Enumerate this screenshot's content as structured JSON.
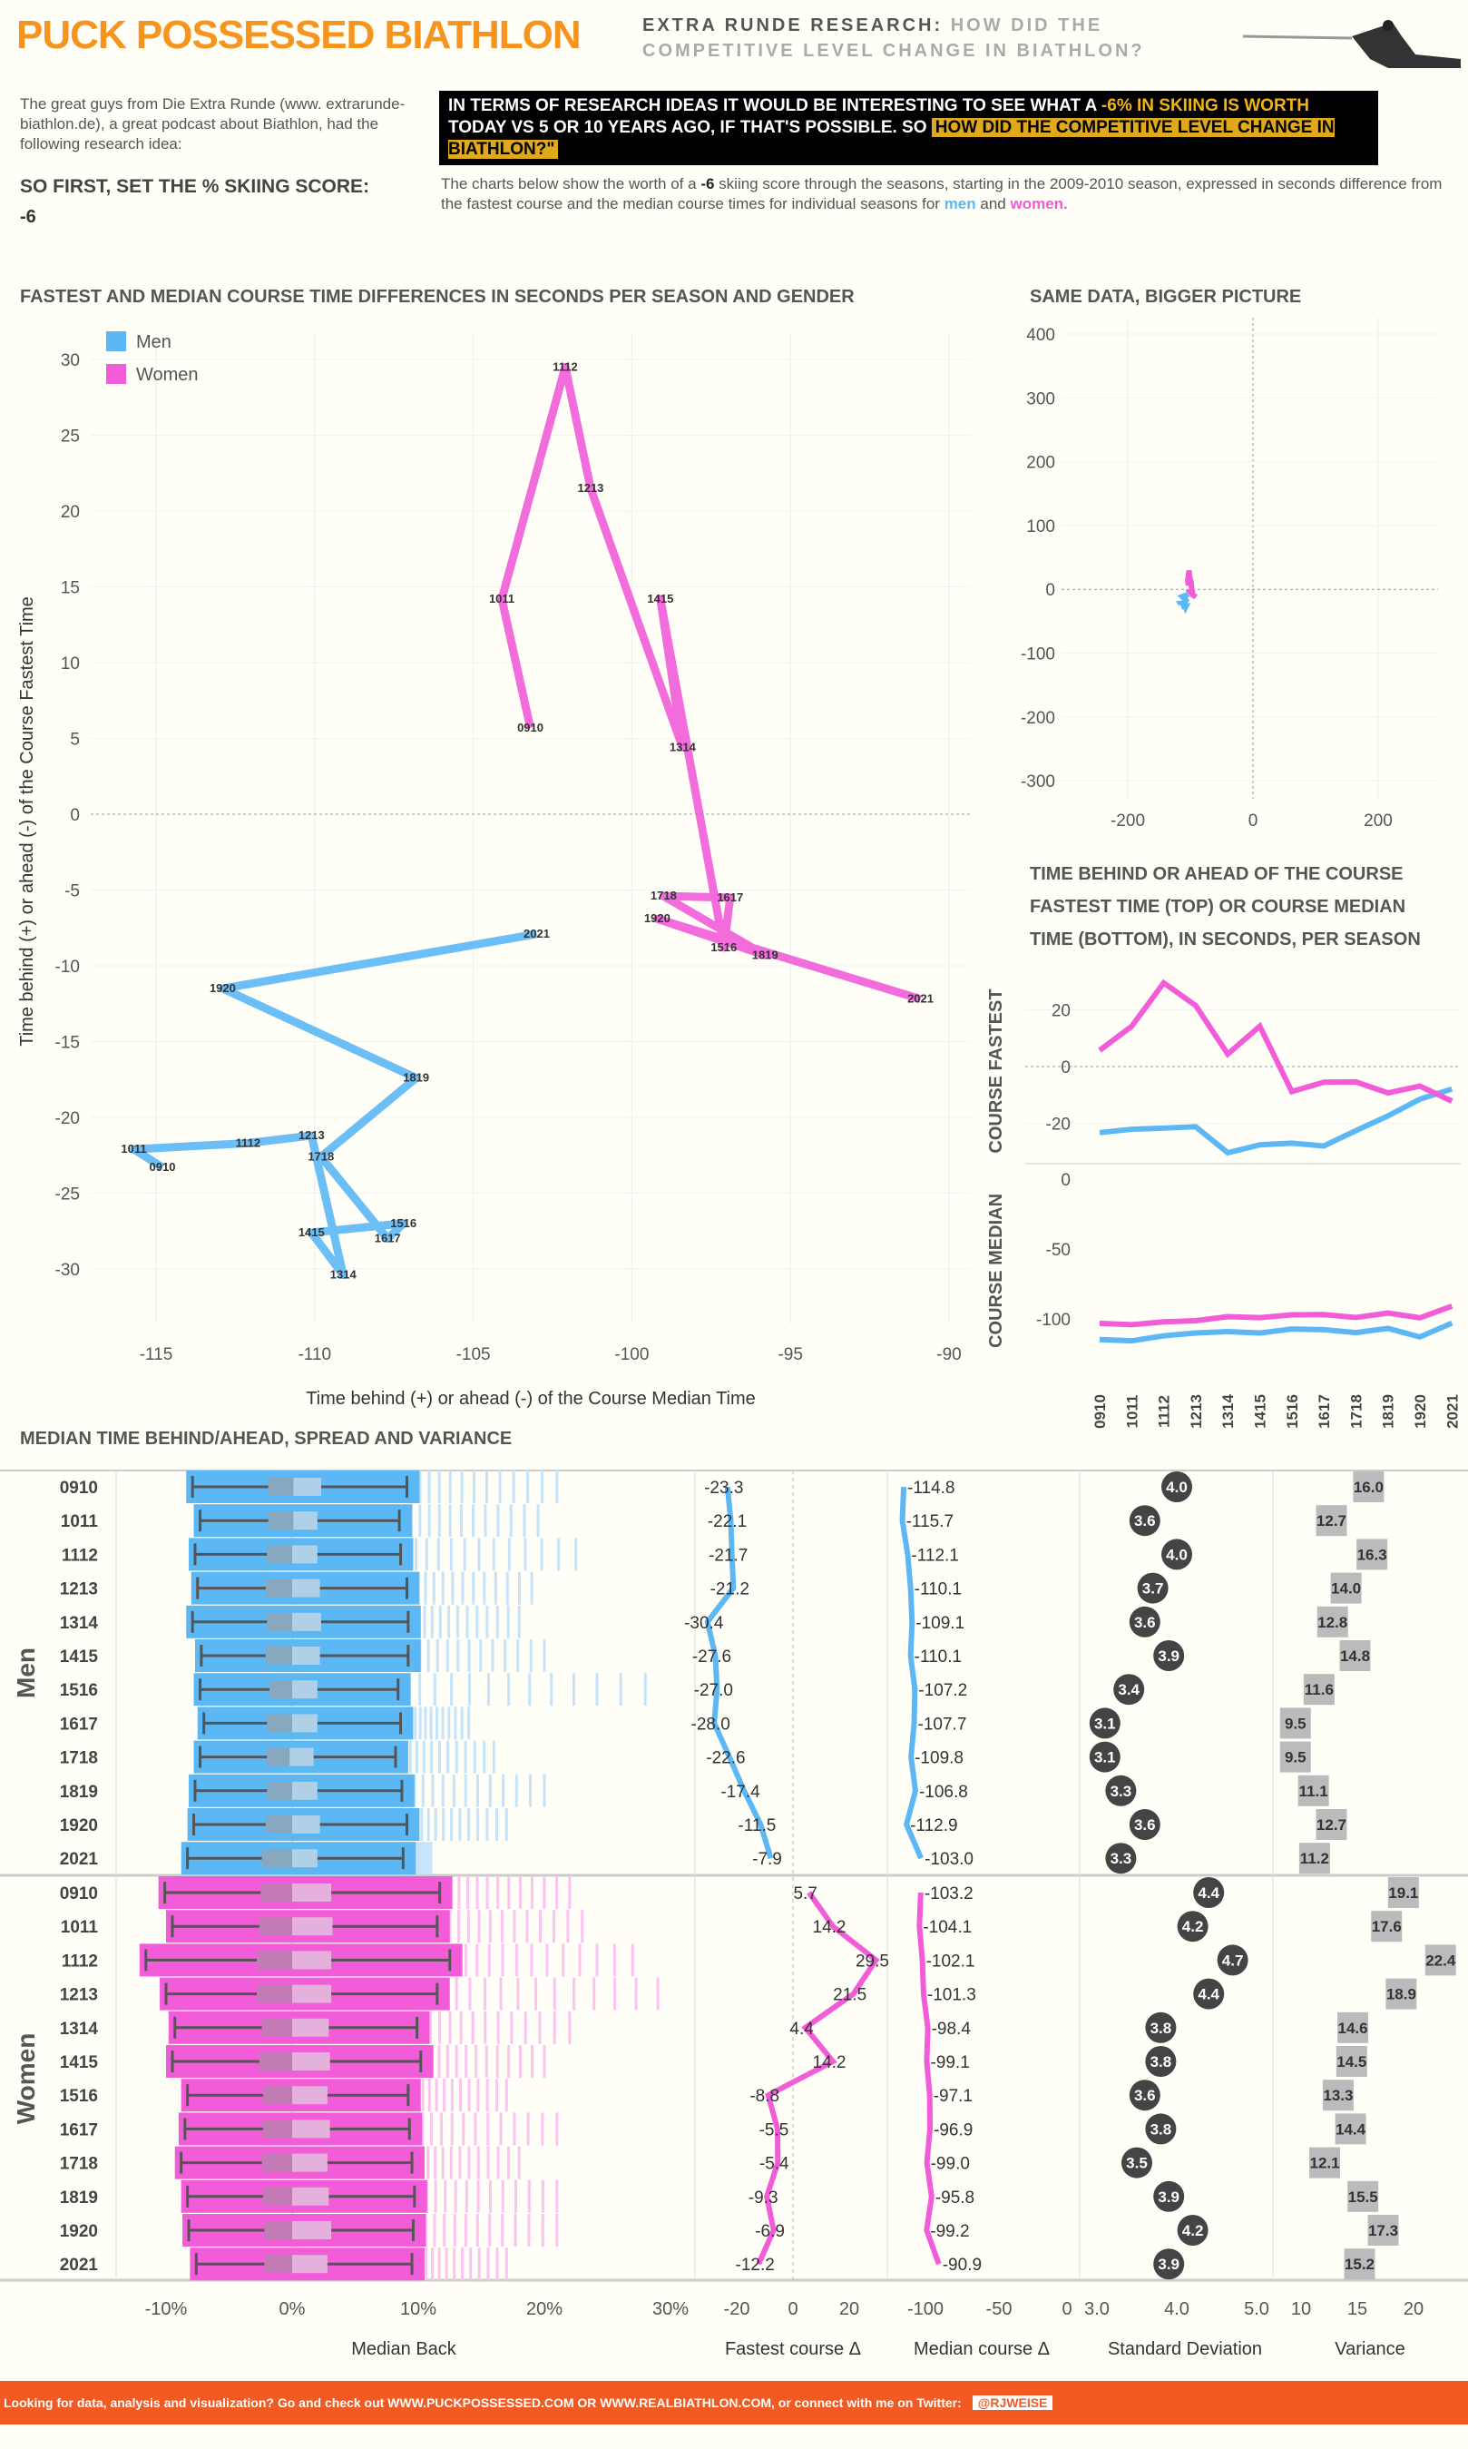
{
  "header": {
    "title": "PUCK POSSESSED BIATHLON",
    "subtitle_bold": "EXTRA RUNDE RESEARCH:",
    "subtitle_light1": "HOW DID THE",
    "subtitle_light2": "COMPETITIVE LEVEL CHANGE IN BIATHLON?"
  },
  "intro": {
    "text": "The great guys from Die Extra Runde (www. extrarunde-biathlon.de), a great podcast about Biathlon, had the following research idea:",
    "quote_a": "IN TERMS OF RESEARCH IDEAS IT WOULD BE INTERESTING TO SEE WHAT A ",
    "quote_b": "-6% IN SKIING IS WORTH",
    "quote_c": " TODAY VS 5 OR 10 YEARS AGO, IF THAT'S POSSIBLE. SO ",
    "quote_d": "HOW DID THE COMPETITIVE LEVEL CHANGE IN BIATHLON?\"",
    "set_label": "SO FIRST, SET THE % SKIING SCORE:",
    "set_value": "-6",
    "desc_a": "The  charts below show the worth of a ",
    "desc_b": "-6",
    "desc_c": " skiing score through the seasons, starting in the 2009-2010 season, expressed in seconds difference from the fastest course and the median course times for individual seasons for ",
    "desc_men": "men",
    "desc_and": " and ",
    "desc_women": "women."
  },
  "colors": {
    "men": "#5BB8F5",
    "women": "#F25CD8",
    "accent": "#F7941D",
    "footer": "#F15A22"
  },
  "footer": {
    "text": "Looking for data, analysis and visualization? Go and check out WWW.PUCKPOSSESSED.COM OR WWW.REALBIATHLON.COM, or connect with me on Twitter:",
    "twitter": "@RJWEISE"
  },
  "chart_data": [
    {
      "type": "line",
      "title": "FASTEST AND MEDIAN COURSE TIME DIFFERENCES IN SECONDS PER SEASON AND GENDER",
      "xlabel": "Time behind (+) or ahead (-) of the Course Median Time",
      "ylabel": "Time behind (+) or ahead (-) of the Course Fastest Time",
      "xlim": [
        -117,
        -89
      ],
      "ylim": [
        -33,
        32
      ],
      "xticks": [
        -115,
        -110,
        -105,
        -100,
        -95,
        -90
      ],
      "yticks": [
        30,
        25,
        20,
        15,
        10,
        5,
        0,
        -5,
        -10,
        -15,
        -20,
        -25,
        -30
      ],
      "legend": [
        "Men",
        "Women"
      ],
      "legend_position": "top-left"
    },
    {
      "type": "scatter",
      "title": "SAME DATA,  BIGGER PICTURE",
      "xticks": [
        -200,
        0,
        200
      ],
      "yticks": [
        400,
        300,
        200,
        100,
        0,
        -100,
        -200,
        -300
      ]
    },
    {
      "type": "line",
      "title": "TIME BEHIND OR AHEAD OF THE COURSE FASTEST TIME (TOP) OR COURSE MEDIAN TIME (BOTTOM), IN SECONDS, PER SEASON",
      "panels": [
        "COURSE FASTEST",
        "COURSE MEDIAN"
      ],
      "fast_ticks": [
        20,
        0,
        -20
      ],
      "median_ticks": [
        0,
        -50,
        -100
      ]
    },
    {
      "type": "table",
      "title": "MEDIAN TIME BEHIND/AHEAD, SPREAD AND VARIANCE",
      "groups": [
        "Men",
        "Women"
      ],
      "columns": [
        "Median Back",
        "Fastest course Δ",
        "Median course Δ",
        "Standard Deviation",
        "Variance"
      ],
      "ticks": {
        "median_back": [
          "-10%",
          "0%",
          "10%",
          "20%",
          "30%"
        ],
        "fastest": [
          "-20",
          "0",
          "20"
        ],
        "median": [
          "-100",
          "-50",
          "0"
        ],
        "sd": [
          "3.0",
          "4.0",
          "5.0"
        ],
        "variance": [
          "10",
          "15",
          "20"
        ]
      }
    },
    {
      "seasons": [
        "0910",
        "1011",
        "1112",
        "1213",
        "1314",
        "1415",
        "1516",
        "1617",
        "1718",
        "1819",
        "1920",
        "2021"
      ],
      "men": {
        "fastest": [
          -23.3,
          -22.1,
          -21.7,
          -21.2,
          -30.4,
          -27.6,
          -27.0,
          -28.0,
          -22.6,
          -17.4,
          -11.5,
          -7.9
        ],
        "median": [
          -114.8,
          -115.7,
          -112.1,
          -110.1,
          -109.1,
          -110.1,
          -107.2,
          -107.7,
          -109.8,
          -106.8,
          -112.9,
          -103.0
        ],
        "sd": [
          4.0,
          3.6,
          4.0,
          3.7,
          3.6,
          3.9,
          3.4,
          3.1,
          3.1,
          3.3,
          3.6,
          3.3
        ],
        "variance": [
          16.0,
          12.7,
          16.3,
          14.0,
          12.8,
          14.8,
          11.6,
          9.5,
          9.5,
          11.1,
          12.7,
          11.2
        ],
        "box_pct": [
          [
            -7.9,
            -1.9,
            0.1,
            2.3,
            9.1,
            21
          ],
          [
            -7.3,
            -1.9,
            0.1,
            2.0,
            8.5,
            19.5
          ],
          [
            -7.7,
            -2.0,
            0.0,
            2.0,
            8.6,
            22.5
          ],
          [
            -7.5,
            -2.1,
            0.0,
            2.2,
            9.1,
            19
          ],
          [
            -7.9,
            -2.0,
            0.0,
            2.3,
            9.2,
            18
          ],
          [
            -7.2,
            -2.1,
            0.0,
            2.2,
            9.2,
            20
          ],
          [
            -7.3,
            -1.8,
            0.0,
            2.0,
            8.4,
            28
          ],
          [
            -7.0,
            -2.0,
            0.0,
            2.0,
            8.6,
            14
          ],
          [
            -7.3,
            -2.0,
            -0.2,
            1.7,
            8.2,
            16
          ],
          [
            -7.7,
            -2.0,
            0.0,
            2.0,
            8.7,
            20
          ],
          [
            -7.8,
            -2.1,
            0.0,
            2.2,
            9.1,
            17
          ],
          [
            -8.3,
            -2.4,
            0.0,
            2.0,
            8.8,
            11
          ]
        ]
      },
      "women": {
        "fastest": [
          5.7,
          14.2,
          29.5,
          21.5,
          4.4,
          14.2,
          -8.8,
          -5.5,
          -5.4,
          -9.3,
          -6.9,
          -12.2
        ],
        "median": [
          -103.2,
          -104.1,
          -102.1,
          -101.3,
          -98.4,
          -99.1,
          -97.1,
          -96.9,
          -99.0,
          -95.8,
          -99.2,
          -90.9
        ],
        "sd": [
          4.4,
          4.2,
          4.7,
          4.4,
          3.8,
          3.8,
          3.6,
          3.8,
          3.5,
          3.9,
          4.2,
          3.9
        ],
        "variance": [
          19.1,
          17.6,
          22.4,
          18.9,
          14.6,
          14.5,
          13.3,
          14.4,
          12.1,
          15.5,
          17.3,
          15.2
        ],
        "box_pct": [
          [
            -10.1,
            -2.5,
            0.0,
            3.1,
            11.7,
            22
          ],
          [
            -9.5,
            -2.6,
            0.0,
            3.2,
            11.5,
            23
          ],
          [
            -11.6,
            -2.8,
            0.0,
            3.1,
            12.5,
            27
          ],
          [
            -10.0,
            -2.8,
            0.0,
            3.1,
            11.5,
            29
          ],
          [
            -9.3,
            -2.4,
            0.0,
            2.9,
            9.9,
            22
          ],
          [
            -9.5,
            -2.6,
            0.0,
            3.0,
            10.2,
            20
          ],
          [
            -8.3,
            -2.3,
            0.0,
            2.8,
            9.2,
            17
          ],
          [
            -8.5,
            -2.3,
            0.0,
            3.0,
            9.3,
            21
          ],
          [
            -8.8,
            -2.4,
            0.0,
            2.8,
            9.5,
            18
          ],
          [
            -8.3,
            -2.3,
            0.0,
            2.9,
            9.7,
            21
          ],
          [
            -8.2,
            -2.2,
            0.0,
            3.1,
            9.6,
            21
          ],
          [
            -7.6,
            -2.2,
            0.0,
            2.8,
            9.5,
            17
          ]
        ]
      }
    }
  ]
}
